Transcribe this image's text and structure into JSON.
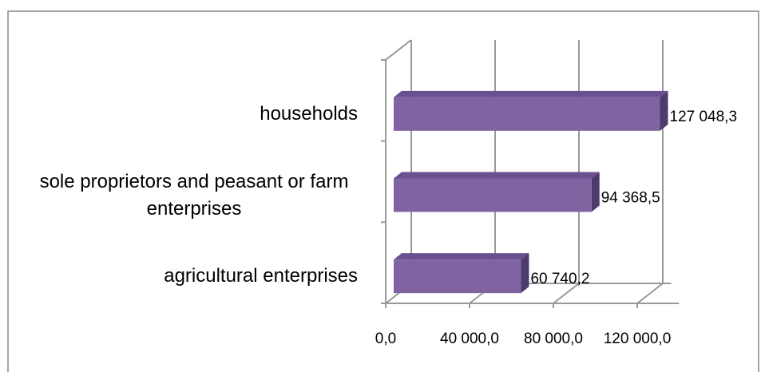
{
  "chart_data": {
    "type": "bar",
    "orientation": "horizontal",
    "categories": [
      "households",
      "sole proprietors and peasant or farm enterprises",
      "agricultural enterprises"
    ],
    "values": [
      127048.3,
      94368.5,
      60740.2
    ],
    "value_labels": [
      "127 048,3",
      "94 368,5",
      "60 740,2"
    ],
    "color": "#8064a2",
    "xlim": [
      0,
      140000
    ],
    "xticks": [
      {
        "value": 0,
        "label": "0,0"
      },
      {
        "value": 40000,
        "label": "40 000,0"
      },
      {
        "value": 80000,
        "label": "80 000,0"
      },
      {
        "value": 120000,
        "label": "120 000,0"
      }
    ],
    "grid": true
  }
}
